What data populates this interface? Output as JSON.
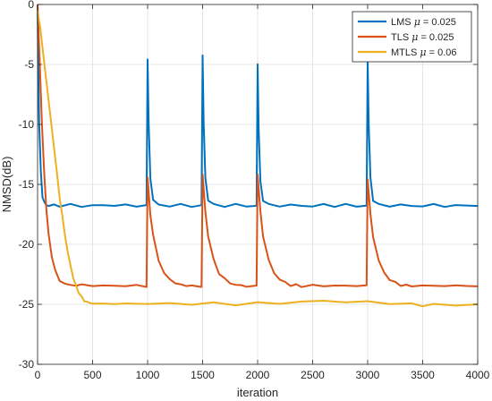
{
  "chart_data": {
    "type": "line",
    "title": "",
    "xlabel": "iteration",
    "ylabel": "NMSD(dB)",
    "xlim": [
      0,
      4000
    ],
    "ylim": [
      -30,
      0
    ],
    "xticks": [
      0,
      500,
      1000,
      1500,
      2000,
      2500,
      3000,
      3500,
      4000
    ],
    "yticks": [
      0,
      -5,
      -10,
      -15,
      -20,
      -25,
      -30
    ],
    "xtick_labels": [
      "0",
      "500",
      "1000",
      "1500",
      "2000",
      "2500",
      "3000",
      "3500",
      "4000"
    ],
    "ytick_labels": [
      "0",
      "-5",
      "-10",
      "-15",
      "-20",
      "-25",
      "-30"
    ],
    "grid": true,
    "legend_position": "top-right",
    "abrupt_change_iterations": [
      1000,
      1500,
      2000,
      3000
    ],
    "series": [
      {
        "name": "LMS μ = 0.025",
        "legend_prefix": "LMS ",
        "legend_mu": "μ",
        "legend_suffix": " = 0.025",
        "color": "#0072BD",
        "x": [
          0,
          5,
          15,
          30,
          45,
          60,
          80,
          100,
          150,
          200,
          300,
          400,
          500,
          600,
          700,
          800,
          900,
          990,
          1000,
          1010,
          1025,
          1050,
          1100,
          1200,
          1300,
          1400,
          1490,
          1500,
          1510,
          1525,
          1550,
          1600,
          1700,
          1800,
          1900,
          1990,
          2000,
          2010,
          2025,
          2050,
          2100,
          2200,
          2300,
          2400,
          2500,
          2600,
          2700,
          2800,
          2900,
          2990,
          3000,
          3010,
          3025,
          3050,
          3100,
          3200,
          3300,
          3400,
          3500,
          3600,
          3700,
          3800,
          3900,
          4000
        ],
        "y": [
          0,
          -4,
          -10,
          -14,
          -16,
          -16.5,
          -16.7,
          -16.8,
          -16.7,
          -16.8,
          -16.7,
          -16.8,
          -16.8,
          -16.7,
          -16.8,
          -16.7,
          -16.8,
          -16.8,
          -4.5,
          -10,
          -14.5,
          -16.3,
          -16.7,
          -16.8,
          -16.7,
          -16.8,
          -16.8,
          -4.2,
          -10,
          -14.5,
          -16.3,
          -16.7,
          -16.8,
          -16.7,
          -16.8,
          -16.8,
          -5.0,
          -10.5,
          -14.8,
          -16.3,
          -16.7,
          -16.8,
          -16.7,
          -16.8,
          -16.8,
          -16.7,
          -16.8,
          -16.7,
          -16.8,
          -16.8,
          -4.7,
          -10,
          -14.5,
          -16.3,
          -16.7,
          -16.8,
          -16.7,
          -16.8,
          -16.8,
          -16.7,
          -16.8,
          -16.8,
          -16.7,
          -16.8
        ]
      },
      {
        "name": "TLS μ = 0.025",
        "legend_prefix": "TLS ",
        "legend_mu": "μ",
        "legend_suffix": " = 0.025",
        "color": "#D95319",
        "x": [
          0,
          20,
          40,
          60,
          80,
          100,
          130,
          160,
          200,
          250,
          300,
          350,
          400,
          500,
          600,
          700,
          800,
          900,
          990,
          1000,
          1025,
          1050,
          1100,
          1150,
          1200,
          1250,
          1300,
          1350,
          1400,
          1490,
          1500,
          1525,
          1550,
          1600,
          1650,
          1700,
          1750,
          1800,
          1850,
          1900,
          1990,
          2000,
          2025,
          2050,
          2100,
          2150,
          2200,
          2250,
          2300,
          2350,
          2400,
          2500,
          2600,
          2700,
          2800,
          2900,
          2990,
          3000,
          3025,
          3050,
          3100,
          3150,
          3200,
          3250,
          3300,
          3350,
          3400,
          3500,
          3600,
          3700,
          3800,
          3900,
          4000
        ],
        "y": [
          0,
          -5,
          -10,
          -14,
          -17,
          -19.2,
          -21,
          -22.2,
          -23,
          -23.3,
          -23.4,
          -23.4,
          -23.4,
          -23.4,
          -23.5,
          -23.4,
          -23.5,
          -23.4,
          -23.5,
          -14.5,
          -17.5,
          -19.3,
          -21.3,
          -22.4,
          -22.9,
          -23.2,
          -23.4,
          -23.4,
          -23.5,
          -23.5,
          -14.2,
          -17.3,
          -19.3,
          -21.3,
          -22.4,
          -22.9,
          -23.2,
          -23.4,
          -23.4,
          -23.5,
          -23.5,
          -14.1,
          -17.3,
          -19.3,
          -21.3,
          -22.4,
          -22.9,
          -23.2,
          -23.4,
          -23.4,
          -23.5,
          -23.4,
          -23.5,
          -23.4,
          -23.5,
          -23.4,
          -23.5,
          -14.5,
          -17.5,
          -19.4,
          -21.3,
          -22.4,
          -22.9,
          -23.2,
          -23.4,
          -23.4,
          -23.5,
          -23.4,
          -23.5,
          -23.4,
          -23.5,
          -23.4,
          -23.5
        ]
      },
      {
        "name": "MTLS μ = 0.06",
        "legend_prefix": "MTLS ",
        "legend_mu": "μ",
        "legend_suffix": " = 0.06",
        "color": "#EDB120",
        "x": [
          0,
          25,
          50,
          75,
          100,
          125,
          150,
          175,
          200,
          225,
          250,
          275,
          300,
          325,
          350,
          375,
          400,
          425,
          450,
          475,
          500,
          600,
          700,
          800,
          900,
          1000,
          1200,
          1400,
          1600,
          1800,
          2000,
          2200,
          2400,
          2600,
          2800,
          3000,
          3200,
          3400,
          3500,
          3600,
          3800,
          4000
        ],
        "y": [
          -0.5,
          -2,
          -4,
          -6,
          -8,
          -10,
          -12,
          -14,
          -16,
          -17.7,
          -19.3,
          -20.7,
          -21.8,
          -22.8,
          -23.5,
          -24,
          -24.4,
          -24.7,
          -24.8,
          -24.9,
          -24.9,
          -25.0,
          -24.9,
          -25.0,
          -24.9,
          -25.0,
          -24.9,
          -25.0,
          -24.9,
          -25.0,
          -24.9,
          -24.9,
          -24.8,
          -24.7,
          -24.8,
          -24.8,
          -24.9,
          -25.0,
          -25.1,
          -25.0,
          -25.1,
          -25.0
        ]
      }
    ]
  }
}
